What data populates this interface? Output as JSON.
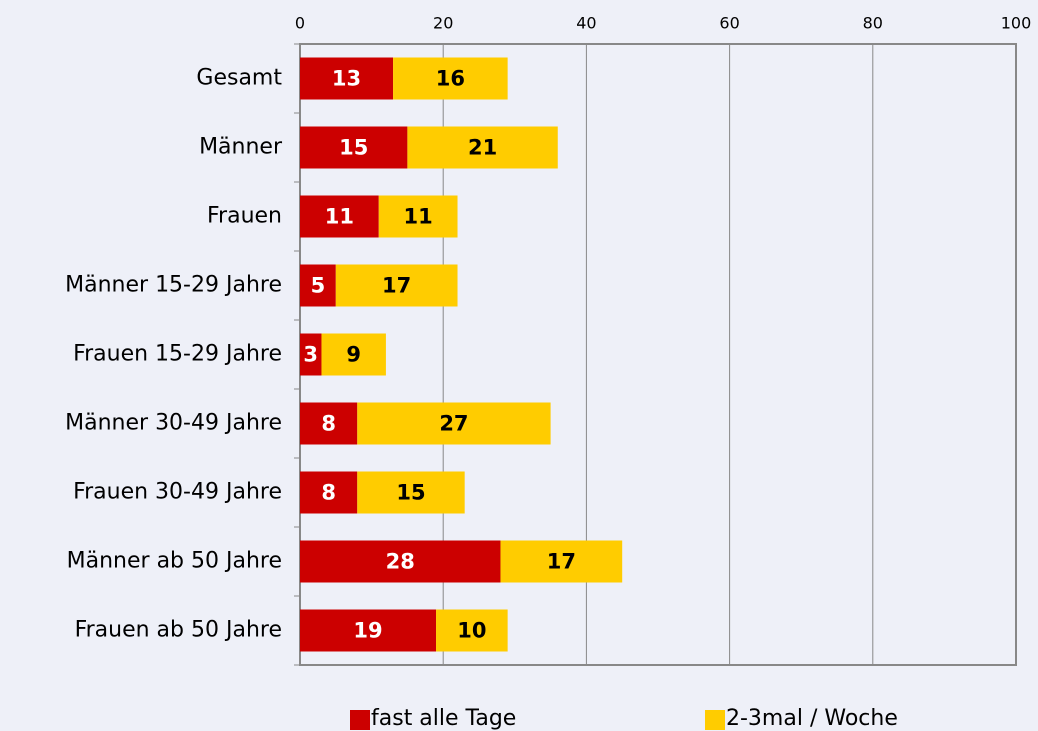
{
  "chart_data": {
    "type": "stacked_barh",
    "categories": [
      "Gesamt",
      "Männer",
      "Frauen",
      "Männer 15-29 Jahre",
      "Frauen 15-29 Jahre",
      "Männer 30-49 Jahre",
      "Frauen 30-49 Jahre",
      "Männer ab 50 Jahre",
      "Frauen ab 50 Jahre"
    ],
    "series": [
      {
        "name": "fast alle Tage",
        "color": "#cc0000",
        "values": [
          13,
          15,
          11,
          5,
          3,
          8,
          8,
          28,
          19
        ]
      },
      {
        "name": "2-3mal / Woche",
        "color": "#ffcc00",
        "values": [
          16,
          21,
          11,
          17,
          9,
          27,
          15,
          17,
          10
        ]
      }
    ],
    "xlim": [
      0,
      100
    ],
    "xticks": [
      0,
      20,
      40,
      60,
      80,
      100
    ],
    "grid": true,
    "legend": "bottom"
  }
}
